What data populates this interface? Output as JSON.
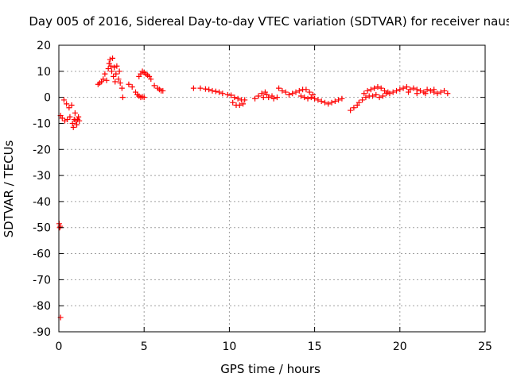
{
  "chart_data": {
    "type": "scatter",
    "title": "Day 005 of 2016, Sidereal Day-to-day VTEC variation (SDTVAR) for receiver naus",
    "xlabel": "GPS time / hours",
    "ylabel": "SDTVAR / TECUs",
    "xlim": [
      0,
      25
    ],
    "ylim": [
      -90,
      20
    ],
    "xticks": [
      0,
      5,
      10,
      15,
      20,
      25
    ],
    "yticks": [
      20,
      10,
      0,
      -10,
      -20,
      -30,
      -40,
      -50,
      -60,
      -70,
      -80,
      -90
    ],
    "grid": true,
    "legend": "none",
    "series_color": "#ff0000",
    "marker": "plus",
    "series": [
      {
        "name": "SDTVAR",
        "points": [
          [
            0.02,
            -48.5
          ],
          [
            0.05,
            -50
          ],
          [
            0.08,
            -49.5
          ],
          [
            0.1,
            -84.5
          ],
          [
            0.1,
            -7
          ],
          [
            0.2,
            -8
          ],
          [
            0.3,
            -1
          ],
          [
            0.35,
            -9
          ],
          [
            0.45,
            -2.5
          ],
          [
            0.5,
            -8.5
          ],
          [
            0.6,
            -4
          ],
          [
            0.65,
            -7.5
          ],
          [
            0.75,
            -3
          ],
          [
            0.8,
            -10
          ],
          [
            0.85,
            -11.5
          ],
          [
            0.9,
            -8.5
          ],
          [
            0.95,
            -6
          ],
          [
            1.0,
            -9
          ],
          [
            1.05,
            -10.5
          ],
          [
            1.1,
            -8.5
          ],
          [
            1.15,
            -7.5
          ],
          [
            1.2,
            -9
          ],
          [
            2.3,
            5
          ],
          [
            2.4,
            5.5
          ],
          [
            2.5,
            6
          ],
          [
            2.6,
            7
          ],
          [
            2.7,
            9
          ],
          [
            2.8,
            6.5
          ],
          [
            2.9,
            11
          ],
          [
            2.95,
            13
          ],
          [
            3.0,
            14.5
          ],
          [
            3.05,
            12
          ],
          [
            3.1,
            10
          ],
          [
            3.15,
            15
          ],
          [
            3.2,
            8
          ],
          [
            3.25,
            11.5
          ],
          [
            3.3,
            6
          ],
          [
            3.35,
            9
          ],
          [
            3.4,
            12
          ],
          [
            3.5,
            7
          ],
          [
            3.55,
            10
          ],
          [
            3.6,
            5.5
          ],
          [
            3.7,
            3.5
          ],
          [
            3.75,
            0
          ],
          [
            4.1,
            5
          ],
          [
            4.3,
            4
          ],
          [
            4.5,
            2
          ],
          [
            4.6,
            1
          ],
          [
            4.7,
            0.5
          ],
          [
            4.8,
            0
          ],
          [
            4.9,
            0.2
          ],
          [
            5.0,
            0
          ],
          [
            4.7,
            8
          ],
          [
            4.8,
            9
          ],
          [
            4.9,
            10
          ],
          [
            5.0,
            9.5
          ],
          [
            5.1,
            9
          ],
          [
            5.2,
            8.5
          ],
          [
            5.3,
            8
          ],
          [
            5.4,
            7
          ],
          [
            5.6,
            4.5
          ],
          [
            5.8,
            3.5
          ],
          [
            5.9,
            3
          ],
          [
            6.0,
            2.5
          ],
          [
            6.1,
            2.5
          ],
          [
            7.9,
            3.5
          ],
          [
            8.3,
            3.5
          ],
          [
            8.6,
            3.2
          ],
          [
            8.8,
            3
          ],
          [
            9.0,
            2.5
          ],
          [
            9.2,
            2.3
          ],
          [
            9.4,
            2
          ],
          [
            9.6,
            1.5
          ],
          [
            9.9,
            1
          ],
          [
            10.1,
            0.8
          ],
          [
            10.3,
            0
          ],
          [
            10.5,
            -0.5
          ],
          [
            10.7,
            -1
          ],
          [
            10.9,
            -1
          ],
          [
            10.2,
            -2
          ],
          [
            10.4,
            -3
          ],
          [
            10.6,
            -3
          ],
          [
            10.8,
            -2.5
          ],
          [
            11.5,
            -0.5
          ],
          [
            11.7,
            0.5
          ],
          [
            11.9,
            1.5
          ],
          [
            12.1,
            2
          ],
          [
            12.2,
            1
          ],
          [
            12.0,
            0
          ],
          [
            12.3,
            0
          ],
          [
            12.5,
            0.5
          ],
          [
            12.6,
            -0.5
          ],
          [
            12.8,
            0
          ],
          [
            12.9,
            3.5
          ],
          [
            13.1,
            2.5
          ],
          [
            13.3,
            2
          ],
          [
            13.5,
            1
          ],
          [
            13.7,
            1.5
          ],
          [
            13.9,
            2
          ],
          [
            14.1,
            2.5
          ],
          [
            14.3,
            3
          ],
          [
            14.5,
            3
          ],
          [
            14.7,
            2
          ],
          [
            14.9,
            1
          ],
          [
            14.2,
            0.5
          ],
          [
            14.4,
            0
          ],
          [
            14.6,
            -0.5
          ],
          [
            14.8,
            0
          ],
          [
            15.0,
            -0.5
          ],
          [
            15.2,
            -1
          ],
          [
            15.4,
            -1.5
          ],
          [
            15.6,
            -2
          ],
          [
            15.8,
            -2.5
          ],
          [
            16.0,
            -2
          ],
          [
            16.2,
            -1.5
          ],
          [
            16.4,
            -1
          ],
          [
            16.6,
            -0.5
          ],
          [
            17.1,
            -5
          ],
          [
            17.3,
            -4
          ],
          [
            17.5,
            -3
          ],
          [
            17.6,
            -2
          ],
          [
            17.8,
            -1
          ],
          [
            18.0,
            0
          ],
          [
            18.2,
            0.5
          ],
          [
            17.9,
            1.5
          ],
          [
            18.1,
            2.5
          ],
          [
            18.3,
            3
          ],
          [
            18.5,
            3.5
          ],
          [
            18.7,
            4
          ],
          [
            18.9,
            3.5
          ],
          [
            19.1,
            2.5
          ],
          [
            19.3,
            2
          ],
          [
            18.4,
            0.5
          ],
          [
            18.6,
            1
          ],
          [
            18.8,
            0
          ],
          [
            19.0,
            0.5
          ],
          [
            19.2,
            1.5
          ],
          [
            19.4,
            1.5
          ],
          [
            19.6,
            2
          ],
          [
            19.8,
            2.5
          ],
          [
            20.0,
            3
          ],
          [
            20.2,
            3.5
          ],
          [
            20.4,
            4
          ],
          [
            20.6,
            3
          ],
          [
            20.8,
            3.5
          ],
          [
            21.0,
            3
          ],
          [
            21.2,
            2.5
          ],
          [
            21.4,
            2
          ],
          [
            21.6,
            3
          ],
          [
            21.8,
            2.5
          ],
          [
            22.0,
            2
          ],
          [
            22.2,
            1.5
          ],
          [
            22.4,
            2
          ],
          [
            22.6,
            2.5
          ],
          [
            22.8,
            1.5
          ],
          [
            20.5,
            2
          ],
          [
            21.0,
            1.5
          ],
          [
            21.5,
            1.5
          ],
          [
            22.0,
            3
          ]
        ]
      }
    ]
  }
}
